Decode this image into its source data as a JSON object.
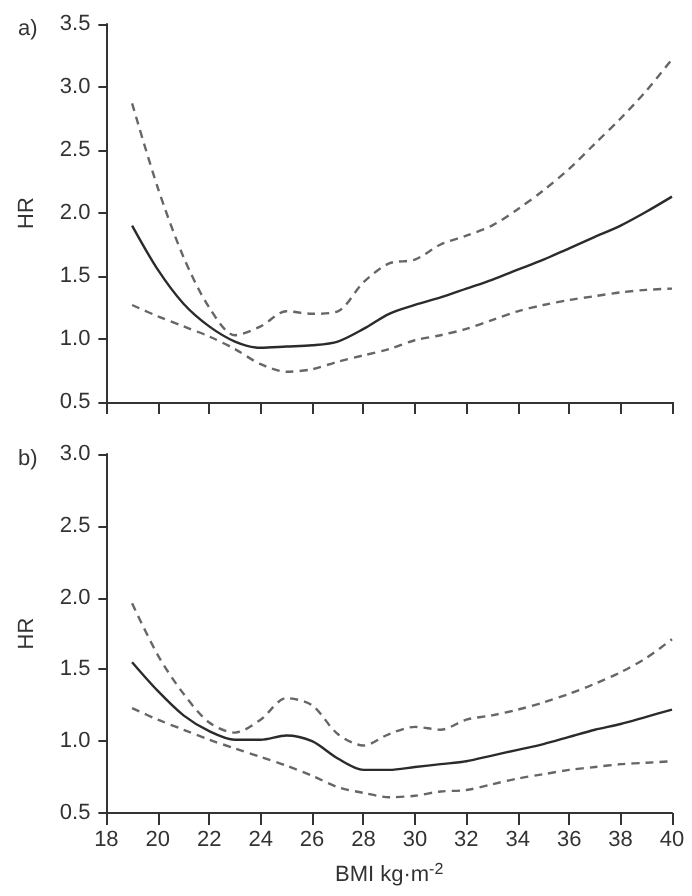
{
  "chart_data": [
    {
      "type": "line",
      "title": "a)",
      "ylabel": "HR",
      "x": [
        19,
        20,
        21,
        22,
        23,
        24,
        25,
        26,
        27,
        28,
        29,
        30,
        31,
        32,
        33,
        34,
        35,
        36,
        37,
        38,
        39,
        40
      ],
      "xlim": [
        18,
        40
      ],
      "xticks": [
        18,
        20,
        22,
        24,
        26,
        28,
        30,
        32,
        34,
        36,
        38,
        40
      ],
      "ylim": [
        0.5,
        3.5
      ],
      "yticks": [
        0.5,
        {
          "value": 1,
          "label": "1.0"
        },
        1.5,
        {
          "value": 2,
          "label": "2.0"
        },
        2.5,
        {
          "value": 3,
          "label": "3.0"
        },
        3.5
      ],
      "tick_labels": "y",
      "grid": false,
      "marker": "none",
      "series": [
        {
          "color": "#2b2b2b",
          "line_style": "solid",
          "values": [
            1.9,
            1.55,
            1.28,
            1.1,
            0.98,
            0.93,
            0.94,
            0.95,
            0.98,
            1.08,
            1.2,
            1.27,
            1.33,
            1.4,
            1.47,
            1.55,
            1.63,
            1.72,
            1.81,
            1.9,
            2.01,
            2.13
          ]
        },
        {
          "color": "#666666",
          "line_style": "dashed",
          "values": [
            2.87,
            2.2,
            1.65,
            1.25,
            1.03,
            1.1,
            1.22,
            1.2,
            1.22,
            1.45,
            1.6,
            1.63,
            1.75,
            1.82,
            1.9,
            2.03,
            2.18,
            2.35,
            2.55,
            2.75,
            2.97,
            3.22
          ]
        },
        {
          "color": "#666666",
          "line_style": "dashed",
          "values": [
            1.27,
            1.18,
            1.1,
            1.02,
            0.92,
            0.8,
            0.74,
            0.76,
            0.82,
            0.87,
            0.92,
            0.99,
            1.03,
            1.08,
            1.15,
            1.22,
            1.27,
            1.31,
            1.34,
            1.37,
            1.39,
            1.4
          ]
        }
      ]
    },
    {
      "type": "line",
      "title": "b)",
      "ylabel": "HR",
      "xlabel": "BMI kg·m$^{-2}$",
      "x": [
        19,
        20,
        21,
        22,
        23,
        24,
        25,
        26,
        27,
        28,
        29,
        30,
        31,
        32,
        33,
        34,
        35,
        36,
        37,
        38,
        39,
        40
      ],
      "xlim": [
        18,
        40
      ],
      "xticks": [
        18,
        20,
        22,
        24,
        26,
        28,
        30,
        32,
        34,
        36,
        38,
        40
      ],
      "ylim": [
        0.5,
        3.0
      ],
      "yticks": [
        0.5,
        {
          "value": 1,
          "label": "1.0"
        },
        1.5,
        {
          "value": 2,
          "label": "2.0"
        },
        2.5,
        {
          "value": 3,
          "label": "3.0"
        }
      ],
      "grid": false,
      "marker": "none",
      "series": [
        {
          "color": "#2b2b2b",
          "line_style": "solid",
          "values": [
            1.55,
            1.35,
            1.18,
            1.07,
            1.01,
            1.01,
            1.04,
            1.0,
            0.88,
            0.8,
            0.8,
            0.82,
            0.84,
            0.86,
            0.9,
            0.94,
            0.98,
            1.03,
            1.08,
            1.12,
            1.17,
            1.22
          ]
        },
        {
          "color": "#666666",
          "line_style": "dashed",
          "values": [
            1.96,
            1.6,
            1.33,
            1.13,
            1.06,
            1.15,
            1.3,
            1.25,
            1.05,
            0.97,
            1.05,
            1.1,
            1.08,
            1.15,
            1.18,
            1.22,
            1.27,
            1.33,
            1.4,
            1.48,
            1.58,
            1.71
          ]
        },
        {
          "color": "#666666",
          "line_style": "dashed",
          "values": [
            1.23,
            1.15,
            1.08,
            1.01,
            0.95,
            0.89,
            0.83,
            0.76,
            0.68,
            0.64,
            0.61,
            0.62,
            0.65,
            0.66,
            0.7,
            0.74,
            0.77,
            0.8,
            0.82,
            0.84,
            0.85,
            0.86
          ]
        }
      ]
    }
  ]
}
